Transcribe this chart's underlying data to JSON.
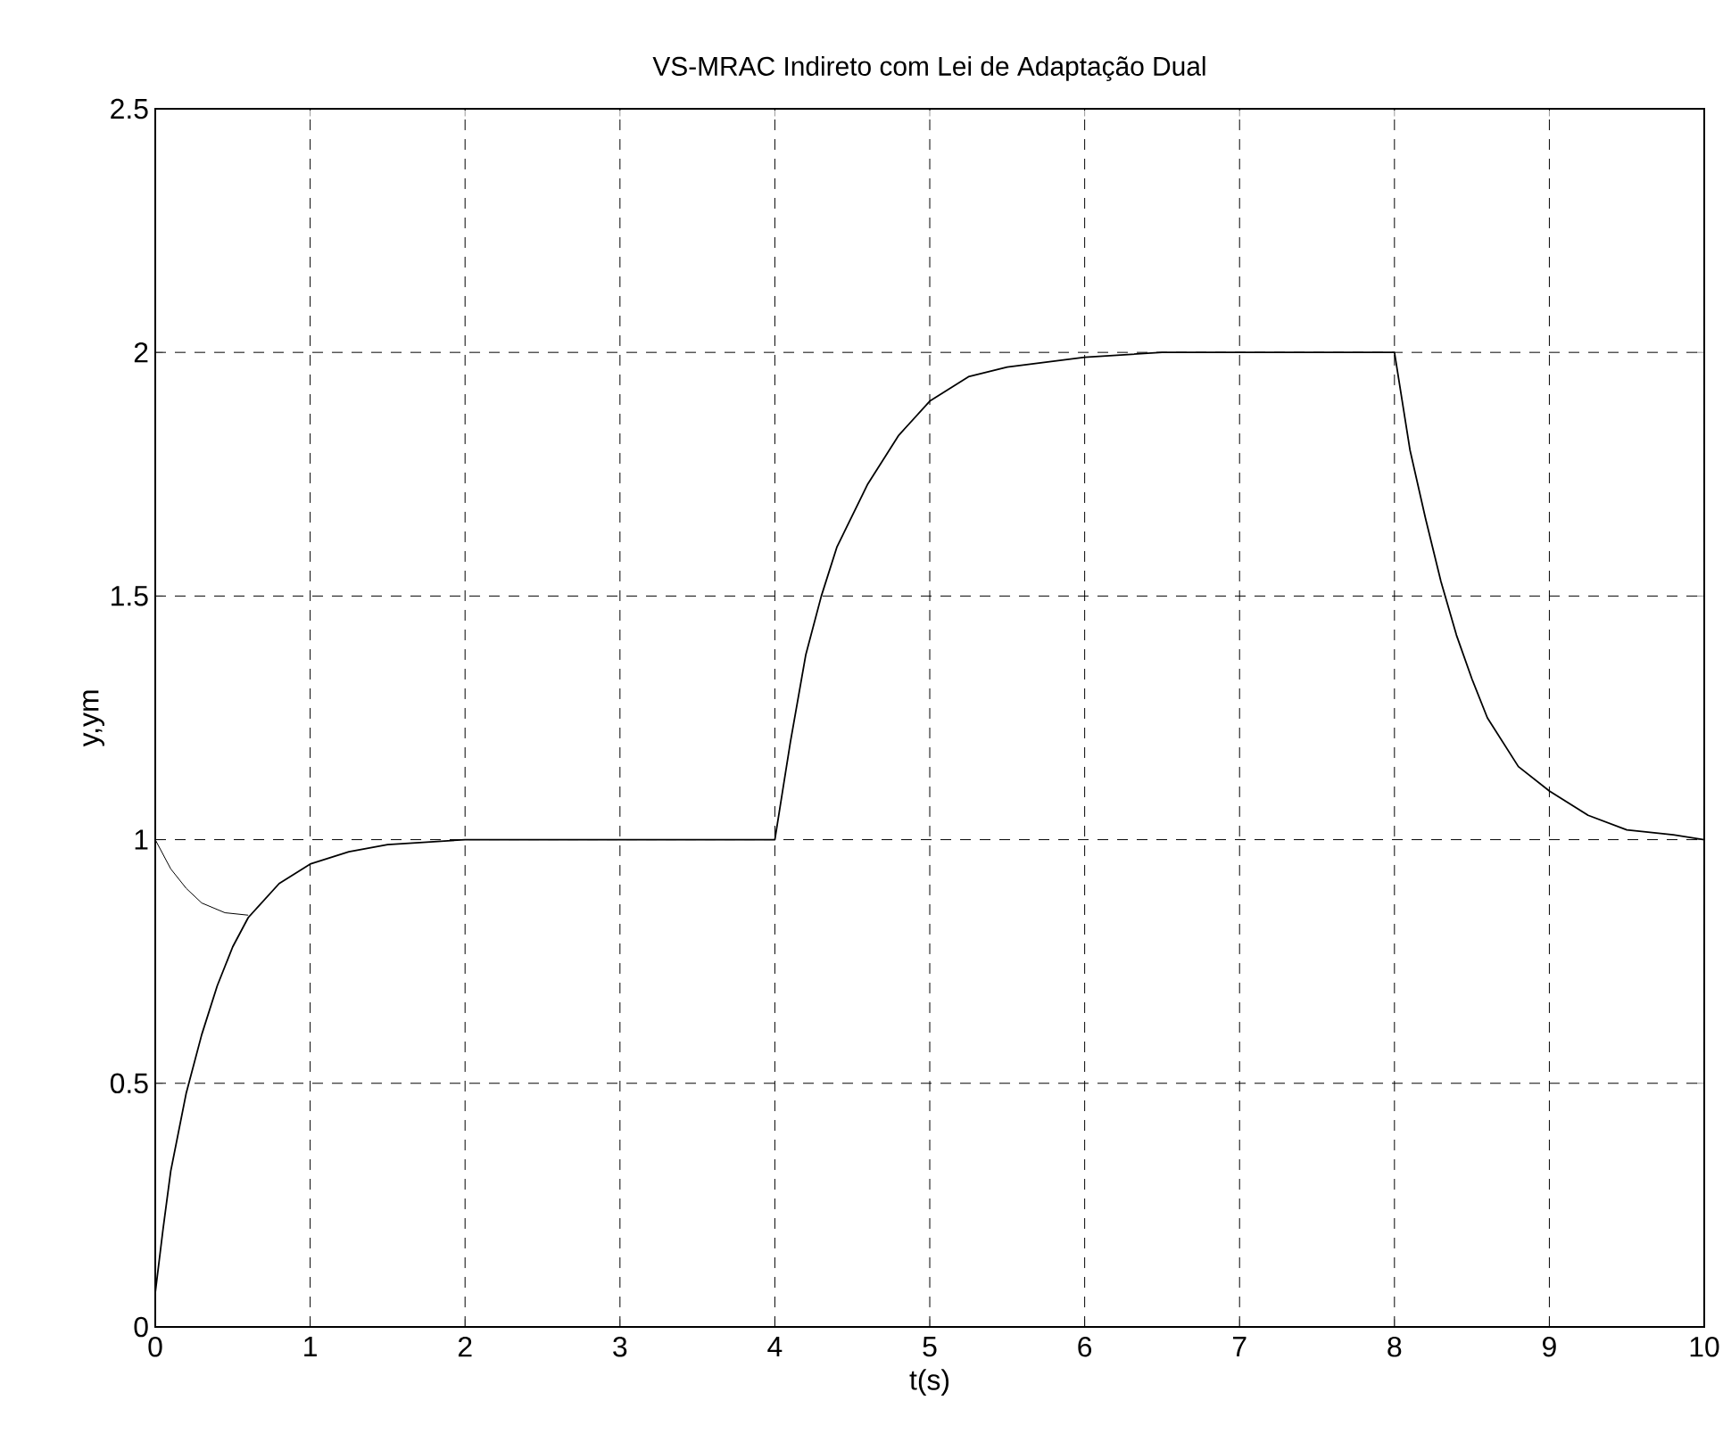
{
  "chart_data": {
    "type": "line",
    "title": "VS-MRAC Indireto com Lei de Adaptação Dual",
    "xlabel": "t(s)",
    "ylabel": "y,ym",
    "xlim": [
      0,
      10
    ],
    "ylim": [
      0,
      2.5
    ],
    "xticks": [
      0,
      1,
      2,
      3,
      4,
      5,
      6,
      7,
      8,
      9,
      10
    ],
    "yticks": [
      0,
      0.5,
      1,
      1.5,
      2,
      2.5
    ],
    "grid": true,
    "marker": "none",
    "line_style": "solid",
    "series": [
      {
        "color": "#000000",
        "x": [
          0,
          0.05,
          0.1,
          0.2,
          0.3,
          0.4,
          0.5,
          0.6,
          0.8,
          1,
          1.25,
          1.5,
          2,
          4,
          4.05,
          4.1,
          4.2,
          4.3,
          4.4,
          4.6,
          4.8,
          5,
          5.25,
          5.5,
          6,
          6.5,
          8,
          8.05,
          8.1,
          8.2,
          8.3,
          8.4,
          8.5,
          8.6,
          8.8,
          9,
          9.25,
          9.5,
          9.8,
          10
        ],
        "values": [
          0.07,
          0.2,
          0.32,
          0.48,
          0.6,
          0.7,
          0.78,
          0.84,
          0.91,
          0.95,
          0.975,
          0.99,
          1,
          1,
          1.1,
          1.2,
          1.38,
          1.5,
          1.6,
          1.73,
          1.83,
          1.9,
          1.95,
          1.97,
          1.99,
          2,
          2,
          1.9,
          1.8,
          1.66,
          1.53,
          1.42,
          1.33,
          1.25,
          1.15,
          1.1,
          1.05,
          1.02,
          1.01,
          1
        ]
      },
      {
        "color": "#000000",
        "x": [
          0,
          0.05,
          0.1,
          0.2,
          0.3,
          0.45,
          0.6
        ],
        "values": [
          1,
          0.97,
          0.94,
          0.9,
          0.87,
          0.85,
          0.845
        ]
      }
    ]
  }
}
